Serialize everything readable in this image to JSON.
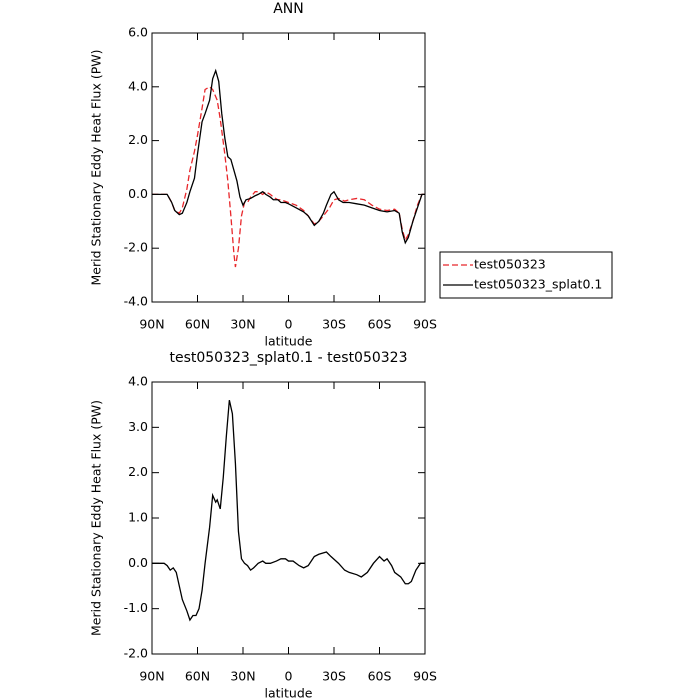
{
  "chart_data": [
    {
      "type": "line",
      "title": "ANN",
      "xlabel": "latitude",
      "ylabel": "Merid Stationary Eddy Heat Flux (PW)",
      "xlim": [
        90,
        -90
      ],
      "xticks": [
        {
          "value": 90,
          "label": "90N"
        },
        {
          "value": 60,
          "label": "60N"
        },
        {
          "value": 30,
          "label": "30N"
        },
        0,
        {
          "value": -30,
          "label": "30S"
        },
        {
          "value": -60,
          "label": "60S"
        },
        {
          "value": -90,
          "label": "90S"
        }
      ],
      "ylim": [
        -4,
        6
      ],
      "yticks": [
        {
          "value": 6,
          "label": "6.0"
        },
        {
          "value": 4,
          "label": "4.0"
        },
        {
          "value": 2,
          "label": "2.0"
        },
        {
          "value": 0,
          "label": "0.0"
        },
        {
          "value": -2,
          "label": "-2.0"
        },
        {
          "value": -4,
          "label": "-4.0"
        }
      ],
      "legend": "right",
      "series": [
        {
          "name": "test050323",
          "color": "#e8262a",
          "style": "dashed",
          "x": [
            90,
            85,
            80,
            77,
            75,
            72,
            70,
            67,
            65,
            62,
            60,
            57,
            55,
            52,
            50,
            47,
            45,
            42,
            40,
            38,
            36,
            35,
            33,
            31,
            29,
            27,
            25,
            22,
            20,
            17,
            15,
            12,
            10,
            7,
            5,
            0,
            -5,
            -10,
            -13,
            -17,
            -20,
            -23,
            -27,
            -30,
            -33,
            -37,
            -40,
            -45,
            -50,
            -55,
            -60,
            -65,
            -70,
            -73,
            -75,
            -77,
            -79,
            -82,
            -85,
            -88,
            -90
          ],
          "values": [
            0,
            0,
            0,
            -0.3,
            -0.6,
            -0.7,
            -0.5,
            0.2,
            0.9,
            1.6,
            2.2,
            3.2,
            3.9,
            4.0,
            3.9,
            3.5,
            2.8,
            1.5,
            0.5,
            -0.8,
            -2.2,
            -2.7,
            -2.0,
            -0.8,
            -0.3,
            -0.3,
            -0.1,
            0.1,
            0.1,
            0.0,
            0.1,
            0.0,
            -0.1,
            -0.2,
            -0.2,
            -0.3,
            -0.4,
            -0.6,
            -0.8,
            -1.1,
            -1.0,
            -0.8,
            -0.5,
            -0.2,
            -0.15,
            -0.25,
            -0.2,
            -0.15,
            -0.2,
            -0.4,
            -0.55,
            -0.6,
            -0.55,
            -0.7,
            -1.3,
            -1.7,
            -1.5,
            -1.0,
            -0.4,
            0,
            0
          ]
        },
        {
          "name": "test050323_splat0.1",
          "color": "#000000",
          "style": "solid",
          "x": [
            90,
            85,
            80,
            77,
            75,
            72,
            70,
            67,
            65,
            62,
            60,
            57,
            55,
            52,
            50,
            48,
            46,
            44,
            42,
            40,
            38,
            36,
            34,
            32,
            30,
            28,
            25,
            22,
            20,
            17,
            15,
            12,
            10,
            7,
            5,
            2,
            0,
            -5,
            -10,
            -13,
            -17,
            -20,
            -23,
            -25,
            -28,
            -30,
            -33,
            -36,
            -40,
            -45,
            -50,
            -55,
            -60,
            -65,
            -70,
            -73,
            -75,
            -77,
            -79,
            -82,
            -85,
            -88,
            -90
          ],
          "values": [
            0,
            0,
            0,
            -0.3,
            -0.6,
            -0.75,
            -0.7,
            -0.3,
            0.1,
            0.6,
            1.5,
            2.7,
            3.0,
            3.5,
            4.3,
            4.6,
            4.2,
            3.0,
            2.1,
            1.4,
            1.3,
            0.9,
            0.5,
            -0.1,
            -0.4,
            -0.2,
            -0.15,
            -0.05,
            0.0,
            0.1,
            0.0,
            -0.1,
            -0.2,
            -0.2,
            -0.3,
            -0.3,
            -0.35,
            -0.5,
            -0.65,
            -0.8,
            -1.15,
            -1.0,
            -0.7,
            -0.4,
            0.0,
            0.1,
            -0.2,
            -0.3,
            -0.3,
            -0.35,
            -0.4,
            -0.5,
            -0.6,
            -0.65,
            -0.6,
            -0.7,
            -1.4,
            -1.8,
            -1.6,
            -1.0,
            -0.5,
            0,
            0
          ]
        }
      ]
    },
    {
      "type": "line",
      "title": "test050323_splat0.1 - test050323",
      "xlabel": "latitude",
      "ylabel": "Merid Stationary Eddy Heat Flux (PW)",
      "xlim": [
        90,
        -90
      ],
      "xticks": [
        {
          "value": 90,
          "label": "90N"
        },
        {
          "value": 60,
          "label": "60N"
        },
        {
          "value": 30,
          "label": "30N"
        },
        0,
        {
          "value": -30,
          "label": "30S"
        },
        {
          "value": -60,
          "label": "60S"
        },
        {
          "value": -90,
          "label": "90S"
        }
      ],
      "ylim": [
        -2,
        4
      ],
      "yticks": [
        {
          "value": 4,
          "label": "4.0"
        },
        {
          "value": 3,
          "label": "3.0"
        },
        {
          "value": 2,
          "label": "2.0"
        },
        {
          "value": 1,
          "label": "1.0"
        },
        {
          "value": 0,
          "label": "0.0"
        },
        {
          "value": -1,
          "label": "-1.0"
        },
        {
          "value": -2,
          "label": "-2.0"
        }
      ],
      "series": [
        {
          "color": "#000000",
          "style": "solid",
          "x": [
            90,
            82,
            80,
            78,
            76,
            74,
            72,
            70,
            67,
            65,
            63,
            61,
            59,
            57,
            55,
            52,
            50,
            48,
            47,
            45,
            43,
            41,
            39,
            37,
            35,
            33,
            31,
            29,
            27,
            25,
            23,
            20,
            17,
            15,
            12,
            8,
            5,
            2,
            0,
            -3,
            -7,
            -10,
            -13,
            -17,
            -20,
            -25,
            -28,
            -33,
            -37,
            -40,
            -45,
            -48,
            -52,
            -56,
            -60,
            -63,
            -65,
            -68,
            -70,
            -74,
            -77,
            -79,
            -81,
            -84,
            -87,
            -90
          ],
          "values": [
            0,
            0,
            -0.05,
            -0.15,
            -0.1,
            -0.2,
            -0.5,
            -0.8,
            -1.05,
            -1.25,
            -1.15,
            -1.15,
            -1.0,
            -0.6,
            0.0,
            0.8,
            1.5,
            1.35,
            1.4,
            1.2,
            1.9,
            2.8,
            3.6,
            3.3,
            2.2,
            0.7,
            0.1,
            0.0,
            -0.05,
            -0.15,
            -0.1,
            0.0,
            0.05,
            0.0,
            0.0,
            0.05,
            0.1,
            0.1,
            0.05,
            0.05,
            -0.05,
            -0.1,
            -0.05,
            0.15,
            0.2,
            0.25,
            0.15,
            0.0,
            -0.15,
            -0.2,
            -0.25,
            -0.3,
            -0.2,
            0.0,
            0.15,
            0.05,
            0.1,
            -0.05,
            -0.2,
            -0.3,
            -0.45,
            -0.45,
            -0.4,
            -0.15,
            0.0,
            0
          ]
        }
      ]
    }
  ]
}
